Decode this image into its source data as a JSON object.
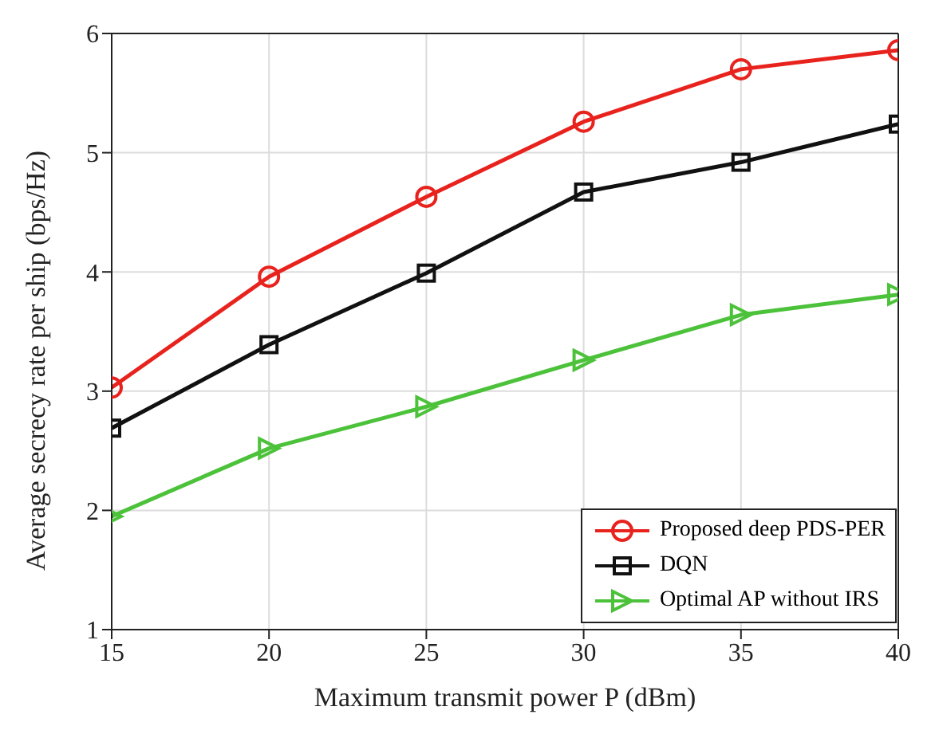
{
  "chart_data": {
    "type": "line",
    "xlabel": "Maximum transmit power P  (dBm)",
    "ylabel": "Average secrecy rate per ship  (bps/Hz)",
    "x": [
      15,
      20,
      25,
      30,
      35,
      40
    ],
    "xlim": [
      15,
      40
    ],
    "xticks": [
      15,
      20,
      25,
      30,
      35,
      40
    ],
    "ylim": [
      1,
      6
    ],
    "yticks": [
      1,
      2,
      3,
      4,
      5,
      6
    ],
    "grid": true,
    "legend": "bottom right",
    "series": [
      {
        "name": "Proposed deep PDS-PER",
        "color": "#e8231e",
        "marker": "circle",
        "values": [
          3.03,
          3.96,
          4.63,
          5.26,
          5.7,
          5.86
        ]
      },
      {
        "name": "DQN",
        "color": "#111111",
        "marker": "square",
        "values": [
          2.69,
          3.39,
          3.99,
          4.67,
          4.92,
          5.24
        ]
      },
      {
        "name": "Optimal AP without IRS",
        "color": "#4cc23a",
        "marker": "triangle",
        "values": [
          1.95,
          2.52,
          2.87,
          3.26,
          3.64,
          3.81
        ]
      }
    ]
  }
}
